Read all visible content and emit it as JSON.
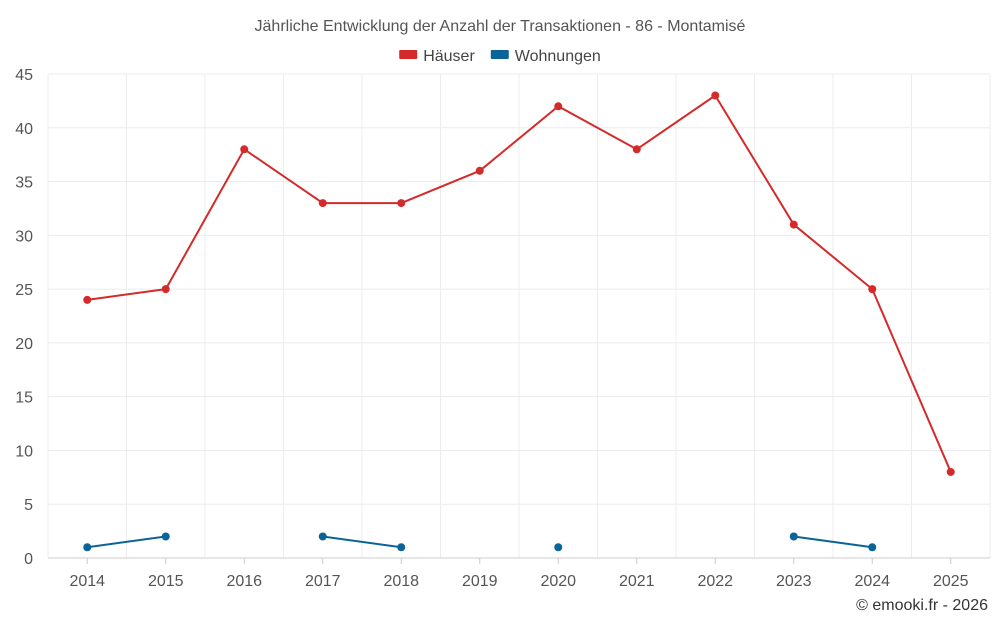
{
  "chart_data": {
    "type": "line",
    "title": "Jährliche Entwicklung der Anzahl der Transaktionen - 86 - Montamisé",
    "categories": [
      "2014",
      "2015",
      "2016",
      "2017",
      "2018",
      "2019",
      "2020",
      "2021",
      "2022",
      "2023",
      "2024",
      "2025"
    ],
    "ylim": [
      0,
      45
    ],
    "yticks": [
      0,
      5,
      10,
      15,
      20,
      25,
      30,
      35,
      40,
      45
    ],
    "series": [
      {
        "name": "Häuser",
        "color": "#d42a2a",
        "values": [
          24,
          25,
          38,
          33,
          33,
          36,
          42,
          38,
          43,
          31,
          25,
          8
        ]
      },
      {
        "name": "Wohnungen",
        "color": "#0a6399",
        "values": [
          1,
          2,
          null,
          2,
          1,
          null,
          1,
          null,
          null,
          2,
          1,
          null
        ]
      }
    ],
    "legend_position": "top-center",
    "grid": true,
    "credit": "© emooki.fr - 2026"
  }
}
